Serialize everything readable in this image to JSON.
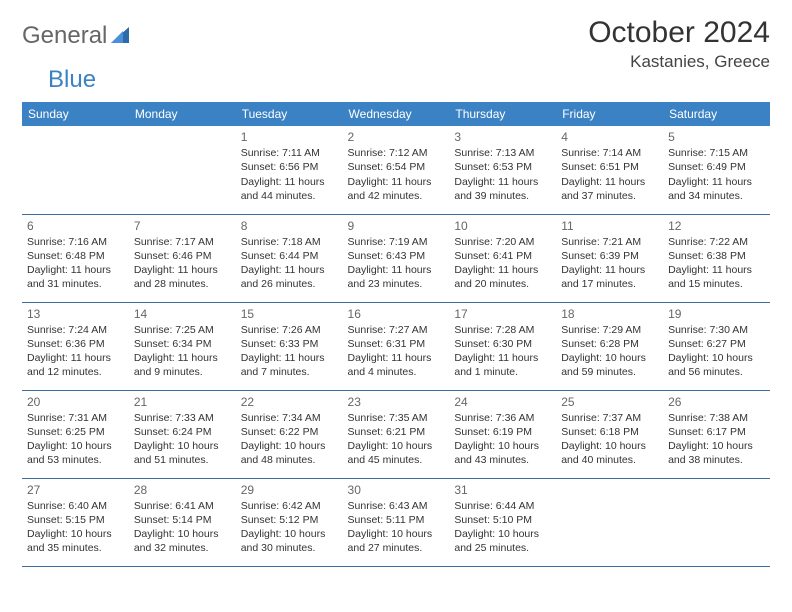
{
  "logo": {
    "part1": "General",
    "part2": "Blue"
  },
  "title": "October 2024",
  "location": "Kastanies, Greece",
  "colors": {
    "header_bg": "#3b82c4",
    "header_text": "#ffffff",
    "border": "#3b6fa0",
    "logo_gray": "#666666",
    "logo_blue": "#3b82c4"
  },
  "weekdays": [
    "Sunday",
    "Monday",
    "Tuesday",
    "Wednesday",
    "Thursday",
    "Friday",
    "Saturday"
  ],
  "weeks": [
    [
      null,
      null,
      {
        "n": "1",
        "sr": "Sunrise: 7:11 AM",
        "ss": "Sunset: 6:56 PM",
        "d1": "Daylight: 11 hours",
        "d2": "and 44 minutes."
      },
      {
        "n": "2",
        "sr": "Sunrise: 7:12 AM",
        "ss": "Sunset: 6:54 PM",
        "d1": "Daylight: 11 hours",
        "d2": "and 42 minutes."
      },
      {
        "n": "3",
        "sr": "Sunrise: 7:13 AM",
        "ss": "Sunset: 6:53 PM",
        "d1": "Daylight: 11 hours",
        "d2": "and 39 minutes."
      },
      {
        "n": "4",
        "sr": "Sunrise: 7:14 AM",
        "ss": "Sunset: 6:51 PM",
        "d1": "Daylight: 11 hours",
        "d2": "and 37 minutes."
      },
      {
        "n": "5",
        "sr": "Sunrise: 7:15 AM",
        "ss": "Sunset: 6:49 PM",
        "d1": "Daylight: 11 hours",
        "d2": "and 34 minutes."
      }
    ],
    [
      {
        "n": "6",
        "sr": "Sunrise: 7:16 AM",
        "ss": "Sunset: 6:48 PM",
        "d1": "Daylight: 11 hours",
        "d2": "and 31 minutes."
      },
      {
        "n": "7",
        "sr": "Sunrise: 7:17 AM",
        "ss": "Sunset: 6:46 PM",
        "d1": "Daylight: 11 hours",
        "d2": "and 28 minutes."
      },
      {
        "n": "8",
        "sr": "Sunrise: 7:18 AM",
        "ss": "Sunset: 6:44 PM",
        "d1": "Daylight: 11 hours",
        "d2": "and 26 minutes."
      },
      {
        "n": "9",
        "sr": "Sunrise: 7:19 AM",
        "ss": "Sunset: 6:43 PM",
        "d1": "Daylight: 11 hours",
        "d2": "and 23 minutes."
      },
      {
        "n": "10",
        "sr": "Sunrise: 7:20 AM",
        "ss": "Sunset: 6:41 PM",
        "d1": "Daylight: 11 hours",
        "d2": "and 20 minutes."
      },
      {
        "n": "11",
        "sr": "Sunrise: 7:21 AM",
        "ss": "Sunset: 6:39 PM",
        "d1": "Daylight: 11 hours",
        "d2": "and 17 minutes."
      },
      {
        "n": "12",
        "sr": "Sunrise: 7:22 AM",
        "ss": "Sunset: 6:38 PM",
        "d1": "Daylight: 11 hours",
        "d2": "and 15 minutes."
      }
    ],
    [
      {
        "n": "13",
        "sr": "Sunrise: 7:24 AM",
        "ss": "Sunset: 6:36 PM",
        "d1": "Daylight: 11 hours",
        "d2": "and 12 minutes."
      },
      {
        "n": "14",
        "sr": "Sunrise: 7:25 AM",
        "ss": "Sunset: 6:34 PM",
        "d1": "Daylight: 11 hours",
        "d2": "and 9 minutes."
      },
      {
        "n": "15",
        "sr": "Sunrise: 7:26 AM",
        "ss": "Sunset: 6:33 PM",
        "d1": "Daylight: 11 hours",
        "d2": "and 7 minutes."
      },
      {
        "n": "16",
        "sr": "Sunrise: 7:27 AM",
        "ss": "Sunset: 6:31 PM",
        "d1": "Daylight: 11 hours",
        "d2": "and 4 minutes."
      },
      {
        "n": "17",
        "sr": "Sunrise: 7:28 AM",
        "ss": "Sunset: 6:30 PM",
        "d1": "Daylight: 11 hours",
        "d2": "and 1 minute."
      },
      {
        "n": "18",
        "sr": "Sunrise: 7:29 AM",
        "ss": "Sunset: 6:28 PM",
        "d1": "Daylight: 10 hours",
        "d2": "and 59 minutes."
      },
      {
        "n": "19",
        "sr": "Sunrise: 7:30 AM",
        "ss": "Sunset: 6:27 PM",
        "d1": "Daylight: 10 hours",
        "d2": "and 56 minutes."
      }
    ],
    [
      {
        "n": "20",
        "sr": "Sunrise: 7:31 AM",
        "ss": "Sunset: 6:25 PM",
        "d1": "Daylight: 10 hours",
        "d2": "and 53 minutes."
      },
      {
        "n": "21",
        "sr": "Sunrise: 7:33 AM",
        "ss": "Sunset: 6:24 PM",
        "d1": "Daylight: 10 hours",
        "d2": "and 51 minutes."
      },
      {
        "n": "22",
        "sr": "Sunrise: 7:34 AM",
        "ss": "Sunset: 6:22 PM",
        "d1": "Daylight: 10 hours",
        "d2": "and 48 minutes."
      },
      {
        "n": "23",
        "sr": "Sunrise: 7:35 AM",
        "ss": "Sunset: 6:21 PM",
        "d1": "Daylight: 10 hours",
        "d2": "and 45 minutes."
      },
      {
        "n": "24",
        "sr": "Sunrise: 7:36 AM",
        "ss": "Sunset: 6:19 PM",
        "d1": "Daylight: 10 hours",
        "d2": "and 43 minutes."
      },
      {
        "n": "25",
        "sr": "Sunrise: 7:37 AM",
        "ss": "Sunset: 6:18 PM",
        "d1": "Daylight: 10 hours",
        "d2": "and 40 minutes."
      },
      {
        "n": "26",
        "sr": "Sunrise: 7:38 AM",
        "ss": "Sunset: 6:17 PM",
        "d1": "Daylight: 10 hours",
        "d2": "and 38 minutes."
      }
    ],
    [
      {
        "n": "27",
        "sr": "Sunrise: 6:40 AM",
        "ss": "Sunset: 5:15 PM",
        "d1": "Daylight: 10 hours",
        "d2": "and 35 minutes."
      },
      {
        "n": "28",
        "sr": "Sunrise: 6:41 AM",
        "ss": "Sunset: 5:14 PM",
        "d1": "Daylight: 10 hours",
        "d2": "and 32 minutes."
      },
      {
        "n": "29",
        "sr": "Sunrise: 6:42 AM",
        "ss": "Sunset: 5:12 PM",
        "d1": "Daylight: 10 hours",
        "d2": "and 30 minutes."
      },
      {
        "n": "30",
        "sr": "Sunrise: 6:43 AM",
        "ss": "Sunset: 5:11 PM",
        "d1": "Daylight: 10 hours",
        "d2": "and 27 minutes."
      },
      {
        "n": "31",
        "sr": "Sunrise: 6:44 AM",
        "ss": "Sunset: 5:10 PM",
        "d1": "Daylight: 10 hours",
        "d2": "and 25 minutes."
      },
      null,
      null
    ]
  ]
}
